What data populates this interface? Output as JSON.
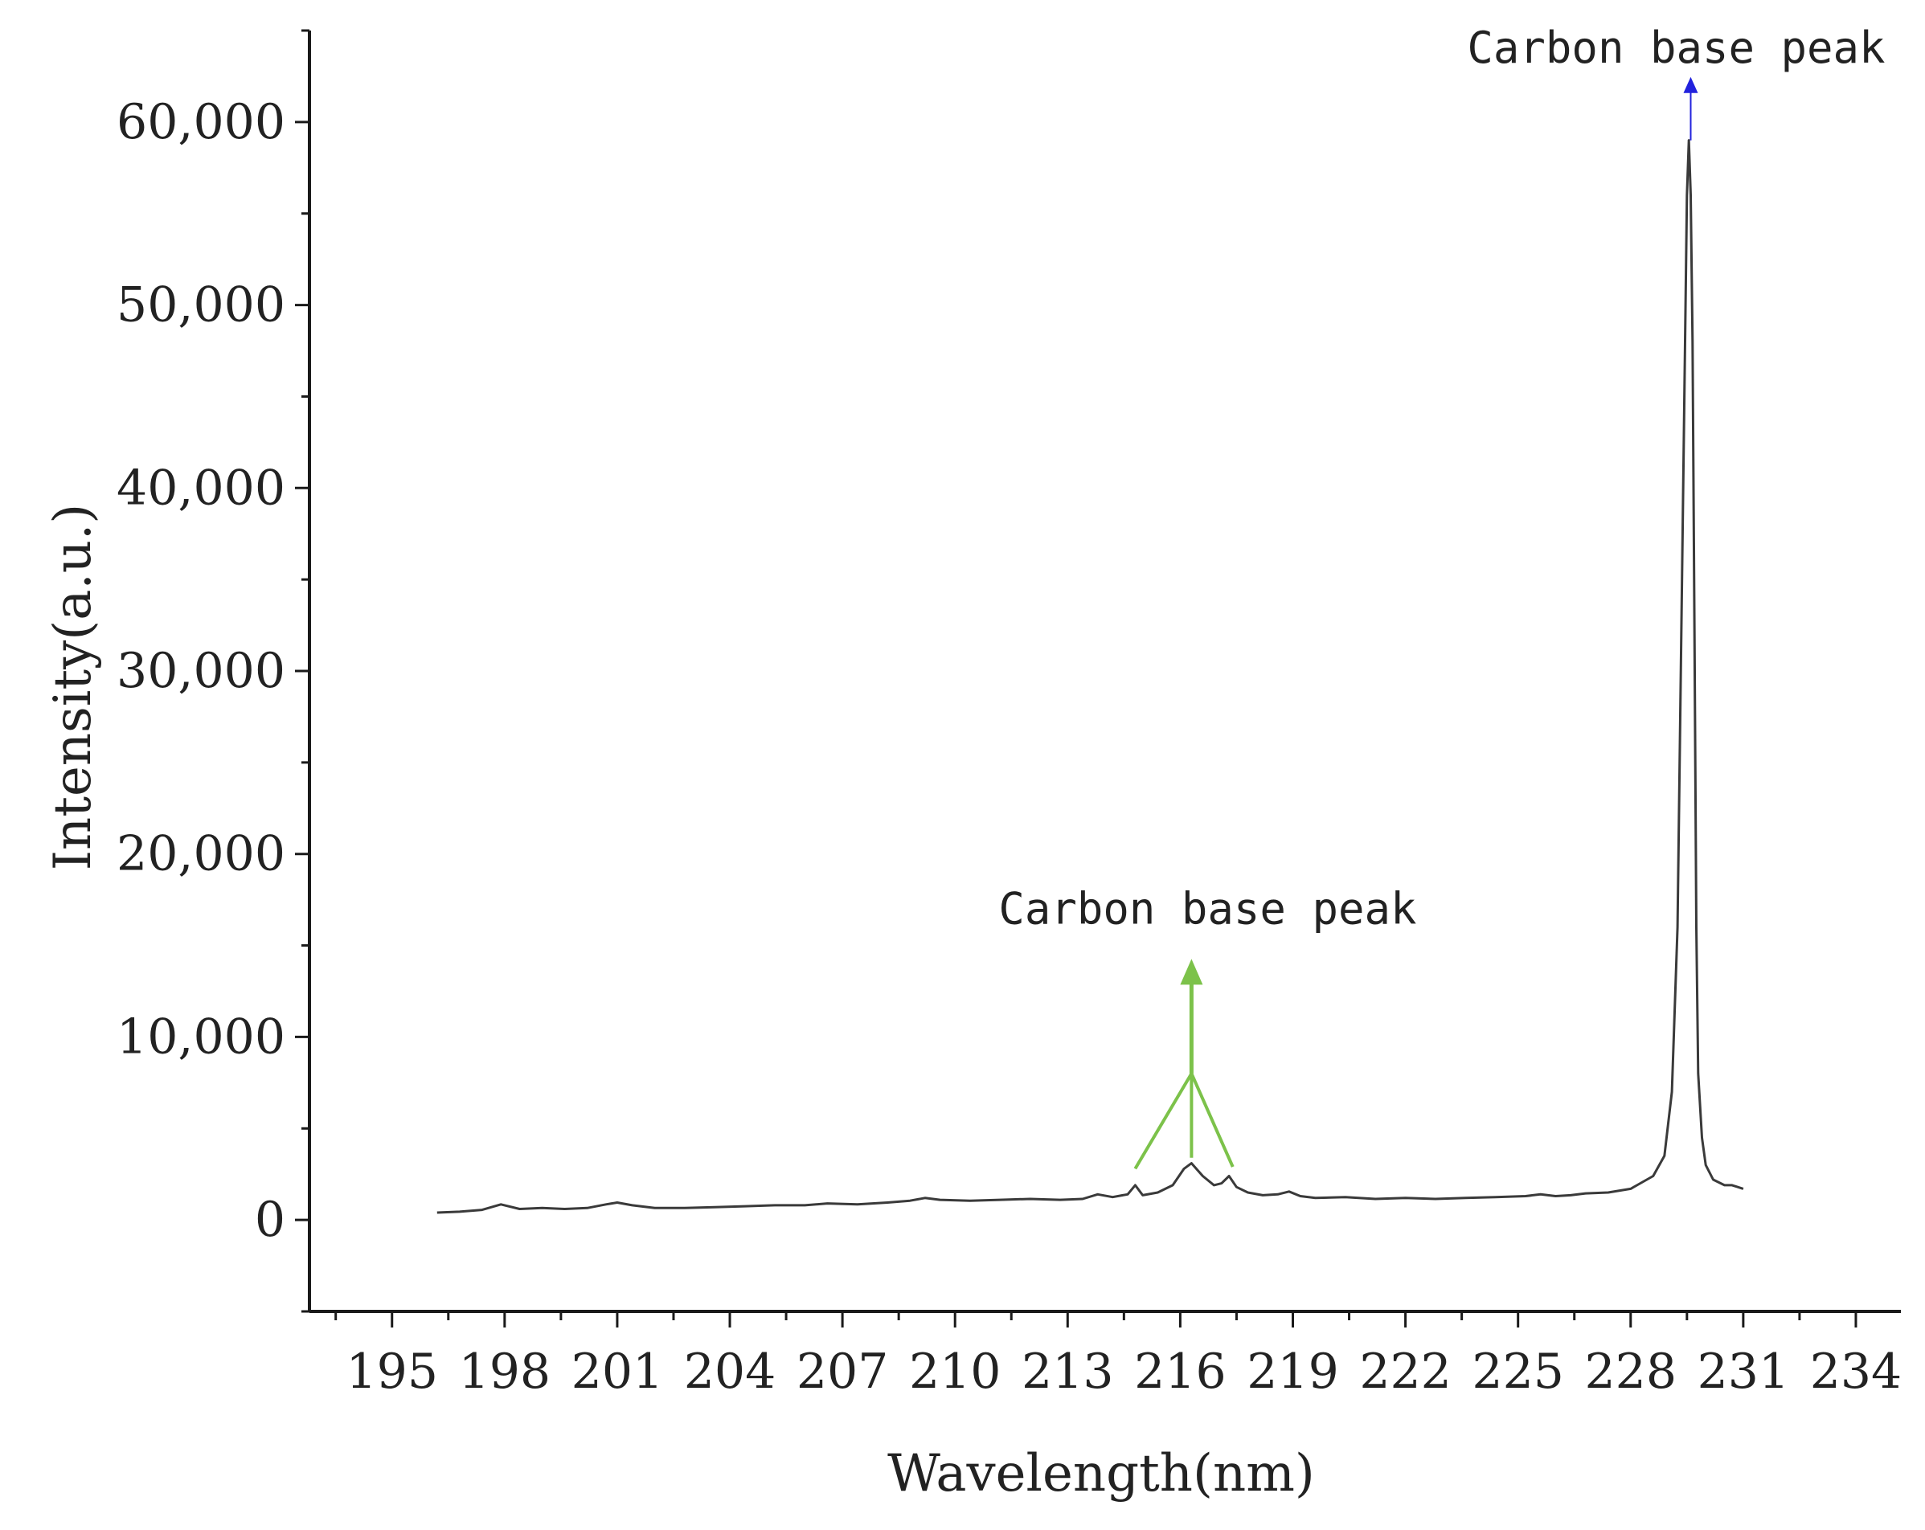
{
  "colors": {
    "spectrum_line": "#3a3a3a",
    "axis": "#1a1a1a",
    "annotation_green": "#7cc24a",
    "annotation_blue": "#2222dd"
  },
  "chart_data": {
    "type": "line",
    "title": "",
    "xlabel": "Wavelength(nm)",
    "ylabel": "Intensity(a.u.)",
    "xlim": [
      192.8,
      235.2
    ],
    "ylim": [
      -5000,
      65000
    ],
    "x_ticks": [
      195,
      198,
      201,
      204,
      207,
      210,
      213,
      216,
      219,
      222,
      225,
      228,
      231,
      234
    ],
    "x_tick_labels": [
      "195",
      "198",
      "201",
      "204",
      "207",
      "210",
      "213",
      "216",
      "219",
      "222",
      "225",
      "228",
      "231",
      "234"
    ],
    "y_ticks": [
      0,
      10000,
      20000,
      30000,
      40000,
      50000,
      60000
    ],
    "y_tick_labels": [
      "0",
      "10,000",
      "20,000",
      "30,000",
      "40,000",
      "50,000",
      "60,000"
    ],
    "grid": false,
    "legend": "none",
    "series": [
      {
        "x": [
          196.2,
          196.8,
          197.4,
          197.9,
          198.4,
          199.0,
          199.6,
          200.2,
          200.7,
          201.0,
          201.4,
          202.0,
          202.8,
          203.6,
          204.4,
          205.2,
          206.0,
          206.6,
          207.4,
          208.2,
          208.8,
          209.2,
          209.6,
          210.4,
          211.2,
          212.0,
          212.8,
          213.4,
          213.8,
          214.2,
          214.6,
          214.8,
          215.0,
          215.4,
          215.8,
          216.1,
          216.3,
          216.6,
          216.9,
          217.1,
          217.3,
          217.5,
          217.8,
          218.2,
          218.6,
          218.9,
          219.2,
          219.6,
          220.4,
          221.2,
          222.0,
          222.8,
          223.6,
          224.4,
          225.2,
          225.6,
          226.0,
          226.4,
          226.8,
          227.4,
          228.0,
          228.6,
          228.9,
          229.1,
          229.25,
          229.35,
          229.45,
          229.5,
          229.55,
          229.6,
          229.65,
          229.7,
          229.75,
          229.8,
          229.9,
          230.0,
          230.2,
          230.5,
          230.7,
          231.0
        ],
        "y": [
          400,
          450,
          550,
          850,
          600,
          650,
          600,
          650,
          850,
          950,
          800,
          650,
          650,
          700,
          750,
          800,
          800,
          900,
          850,
          950,
          1050,
          1200,
          1100,
          1050,
          1100,
          1150,
          1100,
          1150,
          1400,
          1250,
          1400,
          1900,
          1350,
          1500,
          1900,
          2800,
          3100,
          2400,
          1900,
          2000,
          2400,
          1800,
          1500,
          1350,
          1400,
          1550,
          1300,
          1200,
          1250,
          1150,
          1200,
          1150,
          1200,
          1250,
          1300,
          1400,
          1300,
          1350,
          1450,
          1500,
          1700,
          2400,
          3500,
          7000,
          16000,
          32000,
          48000,
          56000,
          59000,
          56000,
          48000,
          32000,
          16000,
          8000,
          4500,
          3000,
          2200,
          1900,
          1900,
          1700
        ]
      }
    ],
    "annotations": [
      {
        "text": "Carbon base peak",
        "color": "green",
        "arrow_from": [
          216.3,
          8000
        ],
        "arrow_to": [
          216.3,
          14000
        ],
        "branches": [
          [
            [
              216.3,
              8000
            ],
            [
              214.8,
              2800
            ]
          ],
          [
            [
              216.3,
              8000
            ],
            [
              216.3,
              3400
            ]
          ],
          [
            [
              216.3,
              8000
            ],
            [
              217.4,
              2900
            ]
          ]
        ]
      },
      {
        "text": "Carbon base peak",
        "color": "blue",
        "arrow_from": [
          229.6,
          59000
        ],
        "arrow_to": [
          229.6,
          62200
        ]
      }
    ]
  }
}
